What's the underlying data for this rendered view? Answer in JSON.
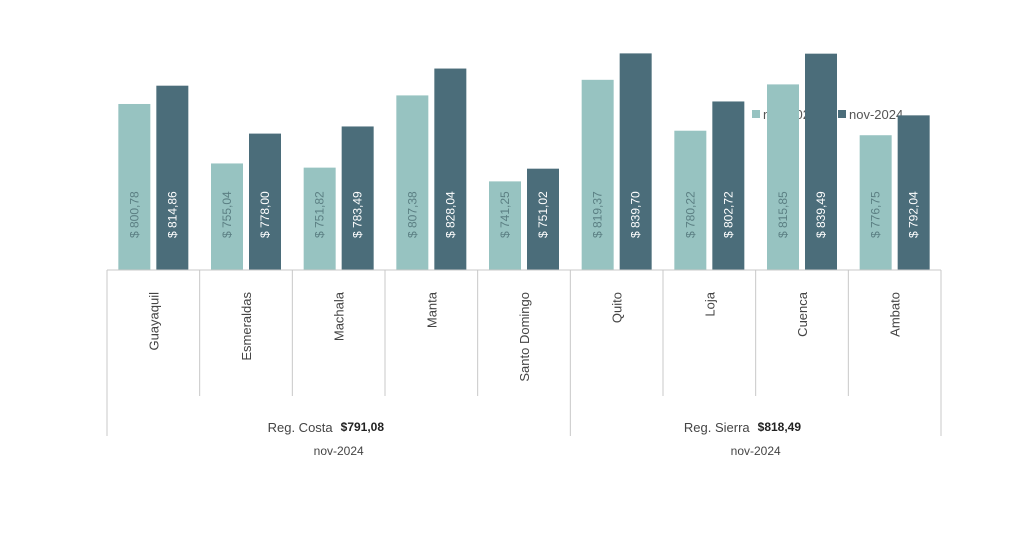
{
  "chart_data": {
    "type": "bar",
    "legend_position": "top-right",
    "grid": false,
    "ylim": [
      0,
      900
    ],
    "series": [
      {
        "name": "nov-2023",
        "color": "#97c3c1",
        "values": [
          800.78,
          755.04,
          751.82,
          807.38,
          741.25,
          819.37,
          780.22,
          815.85,
          776.75
        ],
        "labels": [
          "$ 800,78",
          "$ 755,04",
          "$ 751,82",
          "$ 807,38",
          "$ 741,25",
          "$ 819,37",
          "$ 780,22",
          "$ 815,85",
          "$ 776,75"
        ]
      },
      {
        "name": "nov-2024",
        "color": "#4b6d7a",
        "values": [
          814.86,
          778.0,
          783.49,
          828.04,
          751.02,
          839.7,
          802.72,
          839.49,
          792.04
        ],
        "labels": [
          "$ 814,86",
          "$ 778,00",
          "$ 783,49",
          "$ 828,04",
          "$ 751,02",
          "$ 839,70",
          "$ 802,72",
          "$ 839,49",
          "$ 792,04"
        ]
      }
    ],
    "categories": [
      "Guayaquil",
      "Esmeraldas",
      "Machala",
      "Manta",
      "Santo Domingo",
      "Quito",
      "Loja",
      "Cuenca",
      "Ambato"
    ],
    "groups": [
      {
        "label": "Reg. Costa",
        "value": "$791,08",
        "period": "nov-2024",
        "count": 5
      },
      {
        "label": "Reg. Sierra",
        "value": "$818,49",
        "period": "nov-2024",
        "count": 4
      }
    ]
  }
}
